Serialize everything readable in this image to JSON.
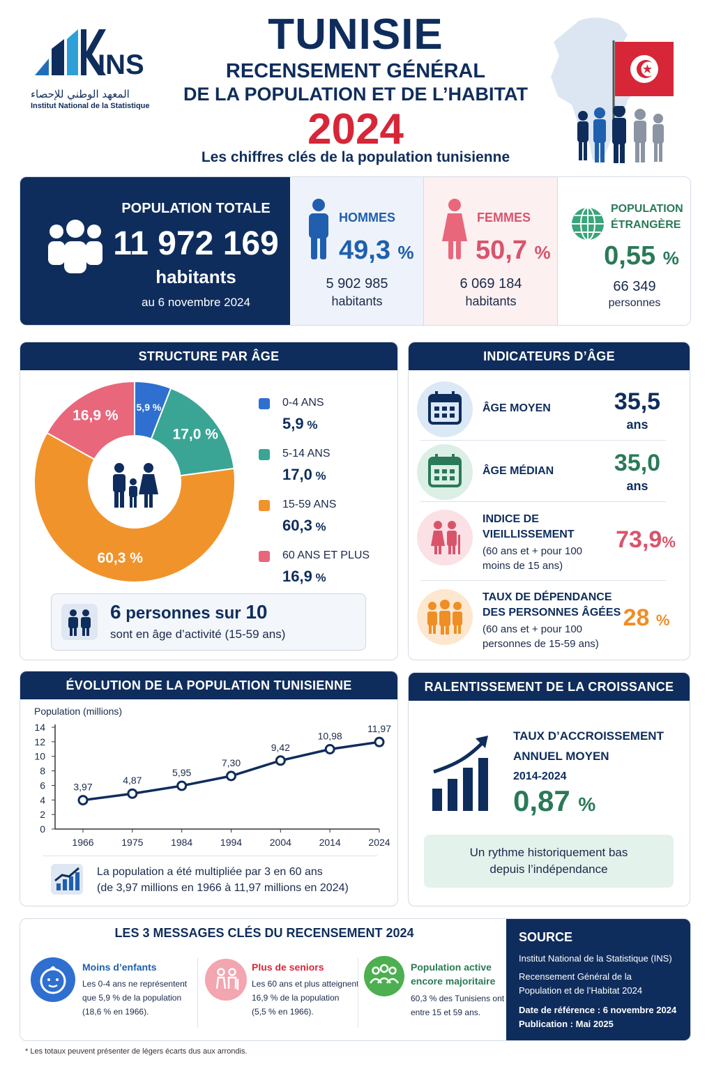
{
  "header": {
    "logo_text": "INS",
    "logo_arabic": "المعهد الوطني للإحصاء",
    "logo_french": "Institut National de la Statistique",
    "title": "TUNISIE",
    "subtitle_line1": "RECENSEMENT GÉNÉRAL",
    "subtitle_line2": "DE LA POPULATION ET DE L’HABITAT",
    "year": "2024",
    "tagline": "Les chiffres clés de la population tunisienne"
  },
  "kpis": {
    "total": {
      "label": "POPULATION TOTALE",
      "value": "11 972 169",
      "unit": "habitants",
      "date": "au 6 novembre 2024"
    },
    "men": {
      "label": "HOMMES",
      "pct": "49,3",
      "pct_sign": "%",
      "count": "5 902 985",
      "unit": "habitants"
    },
    "women": {
      "label": "FEMMES",
      "pct": "50,7",
      "pct_sign": "%",
      "count": "6 069 184",
      "unit": "habitants"
    },
    "foreign": {
      "label_line1": "POPULATION",
      "label_line2": "ÉTRANGÈRE",
      "pct": "0,55",
      "pct_sign": "%",
      "count": "66 349",
      "unit": "personnes"
    }
  },
  "age_structure": {
    "title": "STRUCTURE PAR ÂGE",
    "callout_num1": "6",
    "callout_mid": "personnes sur",
    "callout_num2": "10",
    "callout_sub": "sont en âge d’activité (15-59 ans)"
  },
  "age_indicators": {
    "title": "INDICATEURS D’ÂGE",
    "rows": [
      {
        "label_line1": "ÂGE MOYEN",
        "value": "35,5",
        "unit": "ans",
        "color": "#0f2d5c"
      },
      {
        "label_line1": "ÂGE MÉDIAN",
        "value": "35,0",
        "unit": "ans",
        "color": "#2a7a57"
      },
      {
        "label_line1": "INDICE DE",
        "label_line2": "VIEILLISSEMENT",
        "note_line1": "(60 ans et + pour 100",
        "note_line2": "moins de 15 ans)",
        "value": "73,9",
        "unit": "%",
        "color": "#d9546b"
      },
      {
        "label_line1": "TAUX DE DÉPENDANCE",
        "label_line2": "DES PERSONNES ÂGÉES",
        "note_line1": "(60 ans et + pour 100",
        "note_line2": "personnes de 15-59 ans)",
        "value": "28",
        "unit": "%",
        "color": "#ef8e25"
      }
    ]
  },
  "evolution": {
    "title": "ÉVOLUTION DE LA POPULATION TUNISIENNE",
    "note_line1": "La population a été multipliée par 3 en 60 ans",
    "note_line2": "(de 3,97 millions en 1966 à 11,97 millions en 2024)"
  },
  "growth": {
    "title": "RALENTISSEMENT DE LA CROISSANCE",
    "label_line1": "TAUX D’ACCROISSEMENT",
    "label_line2": "ANNUEL MOYEN",
    "period": "2014-2024",
    "value": "0,87",
    "unit": "%",
    "note_line1": "Un rythme historiquement bas",
    "note_line2": "depuis l’indépendance"
  },
  "messages": {
    "title": "LES 3 MESSAGES CLÉS DU RECENSEMENT 2024",
    "items": [
      {
        "title_line1": "Moins d’enfants",
        "text_line1": "Les 0-4 ans ne représentent",
        "text_line2": "que 5,9 % de la population",
        "text_line3": "(18,6 % en 1966).",
        "color": "#1f5fae"
      },
      {
        "title_line1": "Plus de seniors",
        "text_line1": "Les 60 ans et plus atteignent",
        "text_line2": "16,9 % de la population",
        "text_line3": "(5,5 % en 1966).",
        "color": "#d72638"
      },
      {
        "title_line1": "Population active",
        "title_line2": "encore majoritaire",
        "text_line1": "60,3 % des Tunisiens ont",
        "text_line2": "entre 15 et 59 ans.",
        "color": "#2a7a57"
      }
    ]
  },
  "source": {
    "title": "SOURCE",
    "line1": "Institut National de la Statistique (INS)",
    "line2": "Recensement Général de la",
    "line3": "Population et de l’Habitat 2024",
    "ref_label": "Date de référence :",
    "ref_value": "6 novembre 2024",
    "pub_label": "Publication :",
    "pub_value": "Mai 2025"
  },
  "footnote": "* Les totaux peuvent présenter de légers écarts dus aux arrondis.",
  "colors": {
    "navy": "#0f2d5c",
    "red": "#d72638",
    "blue": "#2f6fd0",
    "teal": "#3aa595",
    "orange": "#f0932b",
    "pink": "#e9677b"
  },
  "chart_data": [
    {
      "type": "pie",
      "title": "STRUCTURE PAR ÂGE",
      "categories": [
        "0-4 ANS",
        "5-14 ANS",
        "15-59 ANS",
        "60 ANS ET PLUS"
      ],
      "values": [
        5.9,
        17.0,
        60.3,
        16.9
      ],
      "value_labels": [
        "5,9",
        "17,0",
        "60,3",
        "16,9"
      ],
      "unit": "%",
      "colors": [
        "#2f6fd0",
        "#3aa595",
        "#f0932b",
        "#e9677b"
      ],
      "legend": "right"
    },
    {
      "type": "line",
      "title": "ÉVOLUTION DE LA POPULATION TUNISIENNE",
      "ylabel": "Population (millions)",
      "x": [
        "1966",
        "1975",
        "1984",
        "1994",
        "2004",
        "2014",
        "2024"
      ],
      "values": [
        3.97,
        4.87,
        5.95,
        7.3,
        9.42,
        10.98,
        11.97
      ],
      "value_labels": [
        "3,97",
        "4,87",
        "5,95",
        "7,30",
        "9,42",
        "10,98",
        "11,97"
      ],
      "yticks": [
        "0",
        "2",
        "4",
        "6",
        "8",
        "10",
        "12",
        "14"
      ],
      "ylim": [
        0,
        14
      ],
      "grid": false
    }
  ]
}
